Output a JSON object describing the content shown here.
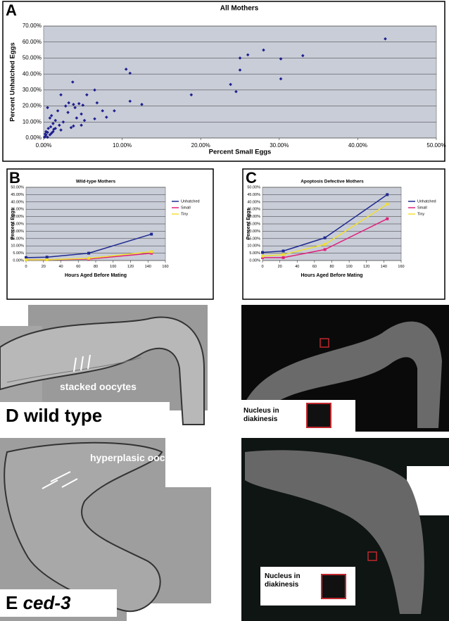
{
  "chart_data": [
    {
      "type": "scatter",
      "label": "A",
      "title": "All Mothers",
      "x_label": "Percent Small Eggs",
      "y_label": "Percent Unhatched Eggs",
      "color": "#1f1f8f",
      "x": [
        43.5,
        33,
        30.2,
        28,
        26,
        25,
        25,
        24.5,
        23.8,
        18.8,
        30.2,
        10.5,
        11,
        11,
        12.5,
        3.7,
        6.5,
        5.5,
        2.2,
        3.2,
        3.8,
        4.5,
        5,
        4,
        6.8,
        2.8,
        1.8,
        0.5,
        9,
        7.5,
        8,
        6.5,
        4.8,
        5.2,
        4.2,
        4.8,
        3.8,
        3.5,
        2.5,
        2,
        2.2,
        1.5,
        1.2,
        1.5,
        1,
        0.8,
        1.2,
        1,
        0.8,
        0.5,
        0.3,
        0.2,
        0.5,
        0.3,
        0.6,
        0.9,
        0.2,
        0.1,
        1.3,
        3.1
      ],
      "values": [
        62,
        51.5,
        49.5,
        55,
        52,
        50,
        42.5,
        29,
        33.5,
        27,
        37,
        43,
        40.5,
        23,
        21,
        35,
        30,
        27,
        27,
        22,
        21,
        21.5,
        20.5,
        19,
        22,
        20,
        17,
        19,
        17,
        17,
        13,
        12,
        15,
        11,
        12.5,
        8,
        7.5,
        6.5,
        10,
        8,
        5,
        6,
        9,
        11,
        14,
        12.5,
        4,
        3,
        2,
        3.5,
        2,
        1,
        0.5,
        4,
        6,
        7,
        2.5,
        0.5,
        5.5,
        16
      ],
      "xlim": [
        0,
        50
      ],
      "ylim": [
        0,
        70
      ],
      "xticks": [
        {
          "value": 0,
          "label": "0.00%"
        },
        {
          "value": 10,
          "label": "10.00%"
        },
        {
          "value": 20,
          "label": "20.00%"
        },
        {
          "value": 30,
          "label": "30.00%"
        },
        {
          "value": 40,
          "label": "40.00%"
        },
        {
          "value": 50,
          "label": "50.00%"
        }
      ],
      "yticks": [
        {
          "value": 0,
          "label": "0.00%"
        },
        {
          "value": 10,
          "label": "10.00%"
        },
        {
          "value": 20,
          "label": "20.00%"
        },
        {
          "value": 30,
          "label": "30.00%"
        },
        {
          "value": 40,
          "label": "40.00%"
        },
        {
          "value": 50,
          "label": "50.00%"
        },
        {
          "value": 60,
          "label": "60.00%"
        },
        {
          "value": 70,
          "label": "70.00%"
        }
      ],
      "grid": true
    },
    {
      "type": "line",
      "label": "B",
      "title": "Wild-type Mothers",
      "x_label": "Hours Aged Before Mating",
      "y_label": "Percent Eggs",
      "x": [
        0,
        24,
        72,
        144
      ],
      "series": [
        {
          "name": "Unhatched",
          "color": "#1f2a8f",
          "values": [
            2,
            2.3,
            5,
            18
          ]
        },
        {
          "name": "Small",
          "color": "#e0207a",
          "values": [
            0.5,
            0.5,
            1,
            5
          ]
        },
        {
          "name": "Tiny",
          "color": "#f0e030",
          "values": [
            0.5,
            0.5,
            1.5,
            6
          ]
        }
      ],
      "xlim": [
        0,
        160
      ],
      "ylim": [
        0,
        50
      ],
      "xticks": [
        0,
        20,
        40,
        60,
        80,
        100,
        120,
        140,
        160
      ],
      "yticks": [
        {
          "value": 0,
          "label": "0.00%"
        },
        {
          "value": 5,
          "label": "5.00%"
        },
        {
          "value": 10,
          "label": "10.00%"
        },
        {
          "value": 15,
          "label": "15.00%"
        },
        {
          "value": 20,
          "label": "20.00%"
        },
        {
          "value": 25,
          "label": "25.00%"
        },
        {
          "value": 30,
          "label": "30.00%"
        },
        {
          "value": 35,
          "label": "35.00%"
        },
        {
          "value": 40,
          "label": "40.00%"
        },
        {
          "value": 45,
          "label": "45.00%"
        },
        {
          "value": 50,
          "label": "50.00%"
        }
      ],
      "grid": true,
      "legend": "right"
    },
    {
      "type": "line",
      "label": "C",
      "title": "Apoptosis Defective Mothers",
      "x_label": "Hours Aged Before Mating",
      "y_label": "Percent Eggs",
      "x": [
        0,
        24,
        72,
        144
      ],
      "series": [
        {
          "name": "Unhatched",
          "color": "#1f2a8f",
          "values": [
            5.5,
            6.5,
            15.5,
            45
          ]
        },
        {
          "name": "Small",
          "color": "#e0207a",
          "values": [
            2,
            2,
            7.5,
            28.5
          ]
        },
        {
          "name": "Tiny",
          "color": "#f0e030",
          "values": [
            3,
            4,
            11,
            38.5
          ]
        }
      ],
      "xlim": [
        0,
        160
      ],
      "ylim": [
        0,
        50
      ],
      "xticks": [
        0,
        20,
        40,
        60,
        80,
        100,
        120,
        140,
        160
      ],
      "yticks": [
        {
          "value": 0,
          "label": "0.00%"
        },
        {
          "value": 5,
          "label": "5.00%"
        },
        {
          "value": 10,
          "label": "10.00%"
        },
        {
          "value": 15,
          "label": "15.00%"
        },
        {
          "value": 20,
          "label": "20.00%"
        },
        {
          "value": 25,
          "label": "25.00%"
        },
        {
          "value": 30,
          "label": "30.00%"
        },
        {
          "value": 35,
          "label": "35.00%"
        },
        {
          "value": 40,
          "label": "40.00%"
        },
        {
          "value": 45,
          "label": "45.00%"
        },
        {
          "value": 50,
          "label": "50.00%"
        }
      ],
      "grid": true,
      "legend": "right"
    }
  ],
  "micrographs": [
    {
      "letter": "D",
      "caption": "wild type",
      "annotation": "stacked oocytes",
      "inset_label": "Nucleus in diakinesis"
    },
    {
      "letter": "E",
      "caption": "ced-3",
      "annotation": "hyperplasic oocytes",
      "inset_label": "Nucleus in diakinesis"
    }
  ]
}
